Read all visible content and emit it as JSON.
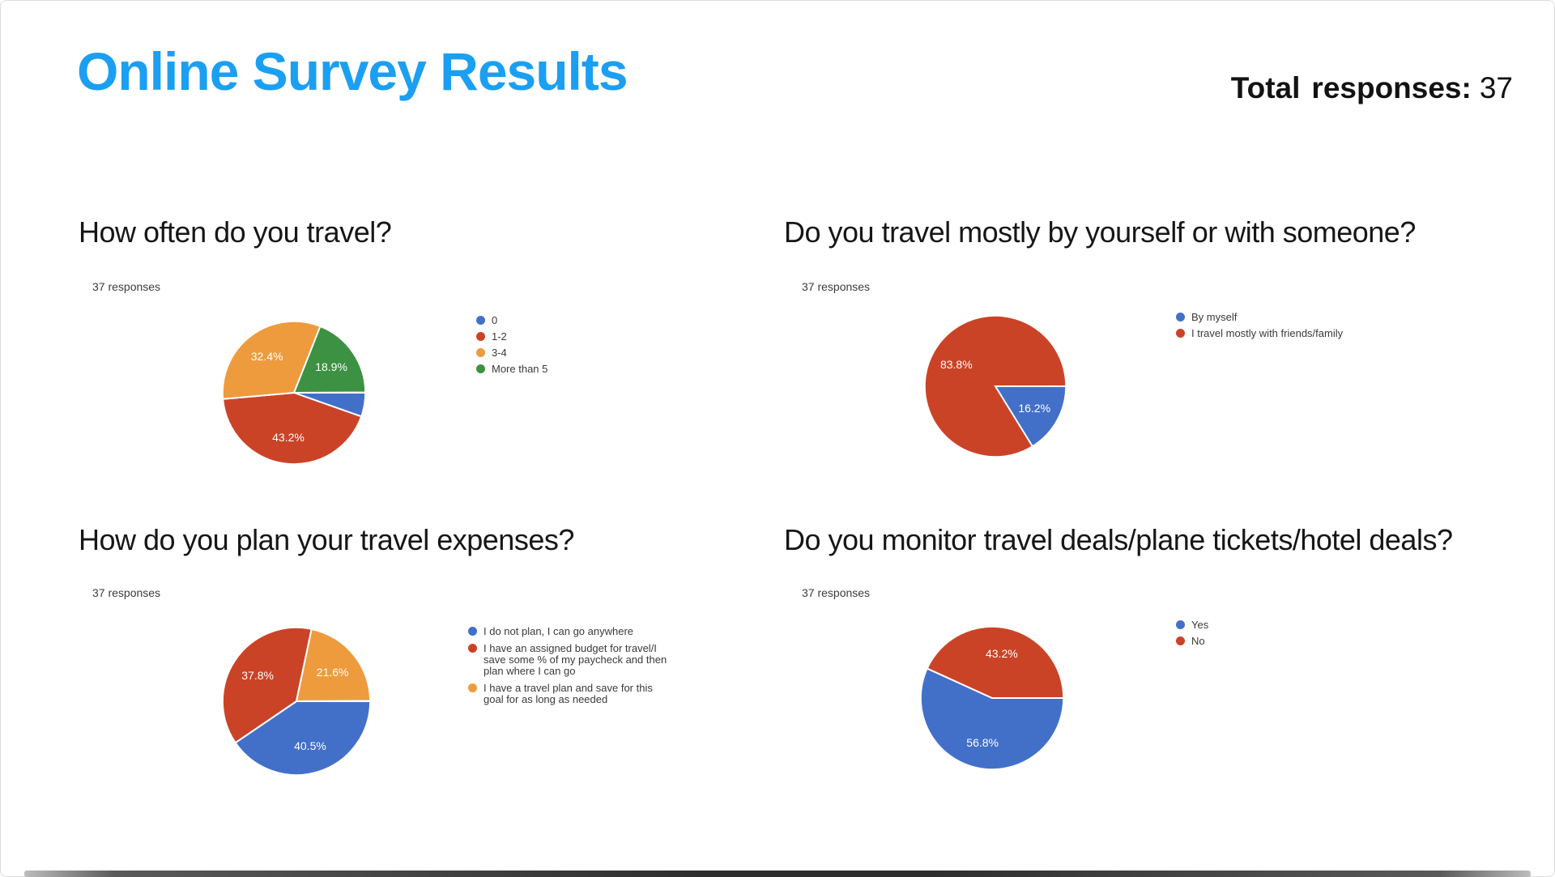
{
  "header": {
    "title": "Online Survey Results",
    "total_label": "Total",
    "total_responses_label": "responses:",
    "total_value": "37"
  },
  "colors": {
    "title_blue": "#1B9FF2",
    "blue": "#4270C9",
    "red": "#CB4327",
    "orange": "#EE9B3E",
    "green": "#3D9142",
    "percent_label": "#FFFFFF"
  },
  "chart_data": [
    {
      "type": "pie",
      "question": "How often do you travel?",
      "responses_note": "37 responses",
      "legend_position": "right",
      "start_angle_deg_from_east_clockwise": 0,
      "categories": [
        "0",
        "1-2",
        "3-4",
        "More than 5"
      ],
      "values_pct": [
        5.4,
        43.2,
        32.4,
        18.9
      ],
      "colors": [
        "blue",
        "red",
        "orange",
        "green"
      ],
      "pct_labels_shown": [
        false,
        true,
        true,
        true
      ]
    },
    {
      "type": "pie",
      "question": "Do you travel mostly by yourself or with someone?",
      "responses_note": "37 responses",
      "legend_position": "right",
      "start_angle_deg_from_east_clockwise": 0,
      "categories": [
        "By myself",
        "I travel mostly with friends/family"
      ],
      "values_pct": [
        16.2,
        83.8
      ],
      "colors": [
        "blue",
        "red"
      ],
      "pct_labels_shown": [
        true,
        true
      ]
    },
    {
      "type": "pie",
      "question": "How do you plan your travel expenses?",
      "responses_note": "37 responses",
      "legend_position": "right",
      "start_angle_deg_from_east_clockwise": 0,
      "categories": [
        "I do not plan, I can go anywhere",
        "I have an assigned budget for travel/I save some % of my paycheck and then plan where I can go",
        "I have a travel plan and save for this goal for as long as needed"
      ],
      "values_pct": [
        40.5,
        37.8,
        21.6
      ],
      "colors": [
        "blue",
        "red",
        "orange"
      ],
      "pct_labels_shown": [
        true,
        true,
        true
      ]
    },
    {
      "type": "pie",
      "question": "Do you monitor travel deals/plane tickets/hotel deals?",
      "responses_note": "37 responses",
      "legend_position": "right",
      "start_angle_deg_from_east_clockwise": 0,
      "categories": [
        "Yes",
        "No"
      ],
      "values_pct": [
        56.8,
        43.2
      ],
      "colors": [
        "blue",
        "red"
      ],
      "pct_labels_shown": [
        true,
        true
      ]
    }
  ]
}
